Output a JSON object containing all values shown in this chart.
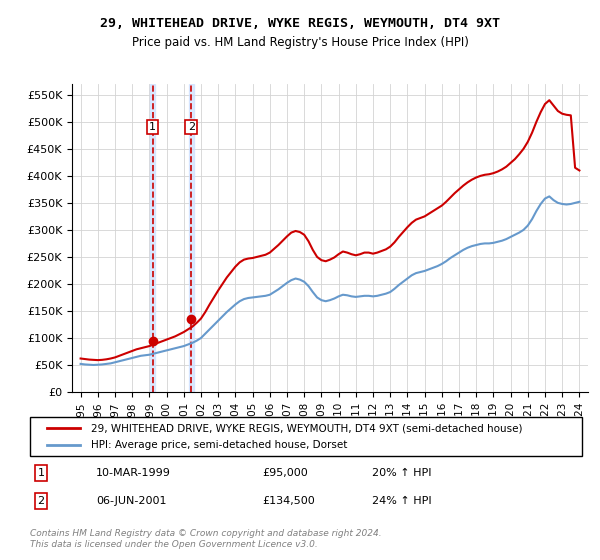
{
  "title": "29, WHITEHEAD DRIVE, WYKE REGIS, WEYMOUTH, DT4 9XT",
  "subtitle": "Price paid vs. HM Land Registry's House Price Index (HPI)",
  "legend_line1": "29, WHITEHEAD DRIVE, WYKE REGIS, WEYMOUTH, DT4 9XT (semi-detached house)",
  "legend_line2": "HPI: Average price, semi-detached house, Dorset",
  "footer": "Contains HM Land Registry data © Crown copyright and database right 2024.\nThis data is licensed under the Open Government Licence v3.0.",
  "transactions": [
    {
      "label": "1",
      "date": "10-MAR-1999",
      "price": 95000,
      "hpi_change": "20% ↑ HPI",
      "x": 1999.19
    },
    {
      "label": "2",
      "date": "06-JUN-2001",
      "price": 134500,
      "hpi_change": "24% ↑ HPI",
      "x": 2001.43
    }
  ],
  "red_line_color": "#cc0000",
  "blue_line_color": "#6699cc",
  "transaction_marker_color": "#cc0000",
  "vline_color": "#cc0000",
  "vband_color": "#cce0ff",
  "marker_box_color": "#cc0000",
  "ylim": [
    0,
    570000
  ],
  "yticks": [
    0,
    50000,
    100000,
    150000,
    200000,
    250000,
    300000,
    350000,
    400000,
    450000,
    500000,
    550000
  ],
  "xlim": [
    1994.5,
    2024.5
  ],
  "xticks": [
    1995,
    1996,
    1997,
    1998,
    1999,
    2000,
    2001,
    2002,
    2003,
    2004,
    2005,
    2006,
    2007,
    2008,
    2009,
    2010,
    2011,
    2012,
    2013,
    2014,
    2015,
    2016,
    2017,
    2018,
    2019,
    2020,
    2021,
    2022,
    2023,
    2024
  ],
  "hpi_data": {
    "years": [
      1995,
      1995.25,
      1995.5,
      1995.75,
      1996,
      1996.25,
      1996.5,
      1996.75,
      1997,
      1997.25,
      1997.5,
      1997.75,
      1998,
      1998.25,
      1998.5,
      1998.75,
      1999,
      1999.25,
      1999.5,
      1999.75,
      2000,
      2000.25,
      2000.5,
      2000.75,
      2001,
      2001.25,
      2001.5,
      2001.75,
      2002,
      2002.25,
      2002.5,
      2002.75,
      2003,
      2003.25,
      2003.5,
      2003.75,
      2004,
      2004.25,
      2004.5,
      2004.75,
      2005,
      2005.25,
      2005.5,
      2005.75,
      2006,
      2006.25,
      2006.5,
      2006.75,
      2007,
      2007.25,
      2007.5,
      2007.75,
      2008,
      2008.25,
      2008.5,
      2008.75,
      2009,
      2009.25,
      2009.5,
      2009.75,
      2010,
      2010.25,
      2010.5,
      2010.75,
      2011,
      2011.25,
      2011.5,
      2011.75,
      2012,
      2012.25,
      2012.5,
      2012.75,
      2013,
      2013.25,
      2013.5,
      2013.75,
      2014,
      2014.25,
      2014.5,
      2014.75,
      2015,
      2015.25,
      2015.5,
      2015.75,
      2016,
      2016.25,
      2016.5,
      2016.75,
      2017,
      2017.25,
      2017.5,
      2017.75,
      2018,
      2018.25,
      2018.5,
      2018.75,
      2019,
      2019.25,
      2019.5,
      2019.75,
      2020,
      2020.25,
      2020.5,
      2020.75,
      2021,
      2021.25,
      2021.5,
      2021.75,
      2022,
      2022.25,
      2022.5,
      2022.75,
      2023,
      2023.25,
      2023.5,
      2023.75,
      2024
    ],
    "values": [
      52000,
      51000,
      50500,
      50000,
      50500,
      51000,
      52000,
      53000,
      55000,
      57000,
      59000,
      61000,
      63000,
      65000,
      67000,
      68000,
      69000,
      71000,
      73000,
      75000,
      77000,
      79000,
      81000,
      83000,
      85000,
      88000,
      91000,
      95000,
      100000,
      108000,
      116000,
      124000,
      132000,
      140000,
      148000,
      155000,
      162000,
      168000,
      172000,
      174000,
      175000,
      176000,
      177000,
      178000,
      180000,
      185000,
      190000,
      196000,
      202000,
      207000,
      210000,
      208000,
      204000,
      196000,
      185000,
      175000,
      170000,
      168000,
      170000,
      173000,
      177000,
      180000,
      179000,
      177000,
      176000,
      177000,
      178000,
      178000,
      177000,
      178000,
      180000,
      182000,
      185000,
      191000,
      198000,
      204000,
      210000,
      216000,
      220000,
      222000,
      224000,
      227000,
      230000,
      233000,
      237000,
      242000,
      248000,
      253000,
      258000,
      263000,
      267000,
      270000,
      272000,
      274000,
      275000,
      275000,
      276000,
      278000,
      280000,
      283000,
      287000,
      291000,
      295000,
      300000,
      308000,
      320000,
      335000,
      348000,
      358000,
      362000,
      355000,
      350000,
      348000,
      347000,
      348000,
      350000,
      352000
    ]
  },
  "price_data": {
    "years": [
      1995,
      1995.25,
      1995.5,
      1995.75,
      1996,
      1996.25,
      1996.5,
      1996.75,
      1997,
      1997.25,
      1997.5,
      1997.75,
      1998,
      1998.25,
      1998.5,
      1998.75,
      1999,
      1999.25,
      1999.5,
      1999.75,
      2000,
      2000.25,
      2000.5,
      2000.75,
      2001,
      2001.25,
      2001.5,
      2001.75,
      2002,
      2002.25,
      2002.5,
      2002.75,
      2003,
      2003.25,
      2003.5,
      2003.75,
      2004,
      2004.25,
      2004.5,
      2004.75,
      2005,
      2005.25,
      2005.5,
      2005.75,
      2006,
      2006.25,
      2006.5,
      2006.75,
      2007,
      2007.25,
      2007.5,
      2007.75,
      2008,
      2008.25,
      2008.5,
      2008.75,
      2009,
      2009.25,
      2009.5,
      2009.75,
      2010,
      2010.25,
      2010.5,
      2010.75,
      2011,
      2011.25,
      2011.5,
      2011.75,
      2012,
      2012.25,
      2012.5,
      2012.75,
      2013,
      2013.25,
      2013.5,
      2013.75,
      2014,
      2014.25,
      2014.5,
      2014.75,
      2015,
      2015.25,
      2015.5,
      2015.75,
      2016,
      2016.25,
      2016.5,
      2016.75,
      2017,
      2017.25,
      2017.5,
      2017.75,
      2018,
      2018.25,
      2018.5,
      2018.75,
      2019,
      2019.25,
      2019.5,
      2019.75,
      2020,
      2020.25,
      2020.5,
      2020.75,
      2021,
      2021.25,
      2021.5,
      2021.75,
      2022,
      2022.25,
      2022.5,
      2022.75,
      2023,
      2023.25,
      2023.5,
      2023.75,
      2024
    ],
    "values": [
      62000,
      61000,
      60000,
      59500,
      59000,
      59500,
      60500,
      62000,
      64000,
      67000,
      70000,
      73000,
      76000,
      79000,
      81000,
      83000,
      85000,
      88000,
      91000,
      94000,
      97000,
      100000,
      103000,
      107000,
      111000,
      116000,
      121000,
      128000,
      136000,
      148000,
      162000,
      175000,
      188000,
      200000,
      212000,
      222000,
      232000,
      240000,
      245000,
      247000,
      248000,
      250000,
      252000,
      254000,
      258000,
      265000,
      272000,
      280000,
      288000,
      295000,
      298000,
      296000,
      291000,
      279000,
      263000,
      250000,
      244000,
      242000,
      245000,
      249000,
      255000,
      260000,
      258000,
      255000,
      253000,
      255000,
      258000,
      258000,
      256000,
      258000,
      261000,
      264000,
      269000,
      277000,
      287000,
      296000,
      305000,
      313000,
      319000,
      322000,
      325000,
      330000,
      335000,
      340000,
      345000,
      352000,
      360000,
      368000,
      375000,
      382000,
      388000,
      393000,
      397000,
      400000,
      402000,
      403000,
      405000,
      408000,
      412000,
      417000,
      424000,
      431000,
      440000,
      450000,
      463000,
      480000,
      500000,
      518000,
      533000,
      540000,
      530000,
      520000,
      515000,
      513000,
      512000,
      415000,
      410000
    ]
  }
}
